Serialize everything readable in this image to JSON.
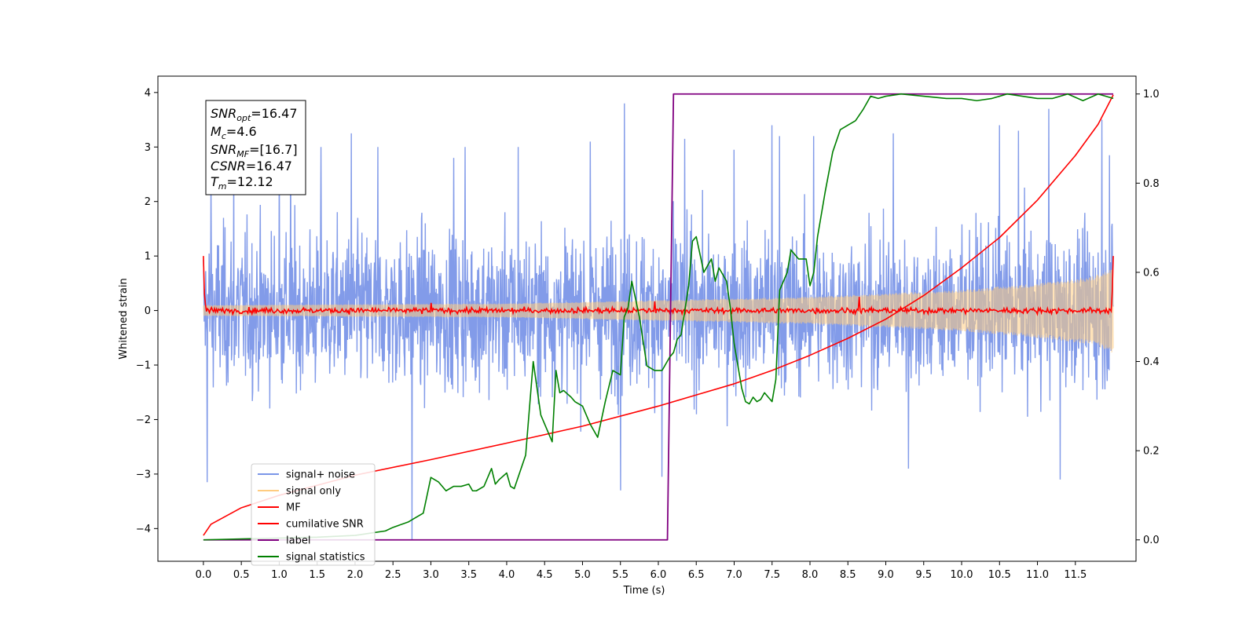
{
  "chart_data": {
    "type": "line",
    "xlabel": "Time (s)",
    "ylabel": "Whitened strain",
    "xlim": [
      -0.6,
      12.3
    ],
    "ylim": [
      -4.6,
      4.3
    ],
    "ylim_right": [
      -0.048,
      1.04
    ],
    "x_ticks": [
      "0.0",
      "0.5",
      "1.0",
      "1.5",
      "2.0",
      "2.5",
      "3.0",
      "3.5",
      "4.0",
      "4.5",
      "5.0",
      "5.5",
      "6.0",
      "6.5",
      "7.0",
      "7.5",
      "8.0",
      "8.5",
      "9.0",
      "9.5",
      "10.0",
      "10.5",
      "11.0",
      "11.5"
    ],
    "y_ticks": [
      "4",
      "3",
      "2",
      "1",
      "0",
      "−1",
      "−2",
      "−3",
      "−4"
    ],
    "y_ticks_right": [
      "1.0",
      "0.8",
      "0.6",
      "0.4",
      "0.2",
      "0.0"
    ],
    "grid": false,
    "legend_position": "lower-left",
    "annotation": {
      "snr_opt_base": "SNR",
      "snr_opt_sub": "opt",
      "snr_opt_value": "=16.47",
      "mc_base": "M",
      "mc_sub": "c",
      "mc_value": "=4.6",
      "snr_mf_base": "SNR",
      "snr_mf_sub": "MF",
      "snr_mf_value": "=[16.7]",
      "csnr_base": "CSNR",
      "csnr_value": "=16.47",
      "tm_base": "T",
      "tm_sub": "m",
      "tm_value": "=12.12"
    },
    "legend": [
      {
        "label": "signal+ noise",
        "color": "#7b96e8"
      },
      {
        "label": "signal only",
        "color": "#ffcc80"
      },
      {
        "label": "MF",
        "color": "#ff0000"
      },
      {
        "label": "cumilative SNR",
        "color": "#ff0000"
      },
      {
        "label": "label",
        "color": "#800080"
      },
      {
        "label": "signal statistics",
        "color": "#008000"
      }
    ],
    "series": [
      {
        "name": "signal+ noise",
        "axis": "left",
        "color": "#7b96e8",
        "x_range": [
          0.0,
          12.0
        ],
        "envelope_typical": [
          -1.6,
          1.6
        ],
        "spikes": [
          [
            0.05,
            -3.15
          ],
          [
            0.1,
            2.4
          ],
          [
            0.4,
            2.8
          ],
          [
            1.0,
            2.9
          ],
          [
            1.15,
            3.1
          ],
          [
            1.55,
            3.0
          ],
          [
            1.95,
            3.25
          ],
          [
            2.3,
            3.0
          ],
          [
            2.75,
            -4.2
          ],
          [
            3.3,
            2.8
          ],
          [
            3.45,
            3.0
          ],
          [
            4.15,
            3.0
          ],
          [
            5.1,
            3.1
          ],
          [
            5.5,
            -3.3
          ],
          [
            5.55,
            3.8
          ],
          [
            6.05,
            -3.05
          ],
          [
            6.35,
            3.15
          ],
          [
            7.0,
            2.95
          ],
          [
            7.5,
            3.4
          ],
          [
            7.6,
            3.2
          ],
          [
            8.05,
            3.2
          ],
          [
            9.1,
            3.25
          ],
          [
            9.3,
            -2.9
          ],
          [
            10.5,
            3.4
          ],
          [
            10.75,
            3.3
          ],
          [
            11.15,
            3.7
          ],
          [
            11.3,
            -3.1
          ],
          [
            11.85,
            3.5
          ],
          [
            11.95,
            2.85
          ]
        ]
      },
      {
        "name": "signal only",
        "axis": "left",
        "color": "#ffcc80",
        "x_range": [
          0.0,
          12.0
        ],
        "amplitude": [
          [
            0.0,
            0.1
          ],
          [
            4.0,
            0.13
          ],
          [
            8.0,
            0.25
          ],
          [
            10.0,
            0.38
          ],
          [
            11.0,
            0.5
          ],
          [
            11.7,
            0.62
          ],
          [
            12.0,
            0.78
          ]
        ]
      },
      {
        "name": "MF",
        "axis": "left",
        "color": "#ff0000",
        "x_range": [
          0.0,
          12.0
        ],
        "start_value": 1.0,
        "end_value": 1.0,
        "noise_amplitude": 0.08,
        "spikes": [
          [
            8.65,
            0.25
          ],
          [
            5.95,
            0.17
          ],
          [
            3.0,
            0.14
          ]
        ]
      },
      {
        "name": "cumilative SNR",
        "axis": "right",
        "color": "#ff0000",
        "x": [
          0.0,
          0.1,
          0.5,
          1.0,
          2.0,
          3.0,
          4.0,
          5.0,
          6.0,
          6.5,
          7.0,
          7.5,
          8.0,
          8.5,
          9.0,
          9.5,
          10.0,
          10.5,
          11.0,
          11.5,
          11.8,
          12.0
        ],
        "values": [
          0.01,
          0.035,
          0.072,
          0.1,
          0.145,
          0.18,
          0.217,
          0.255,
          0.3,
          0.325,
          0.35,
          0.38,
          0.414,
          0.452,
          0.495,
          0.548,
          0.61,
          0.678,
          0.762,
          0.862,
          0.932,
          0.998
        ]
      },
      {
        "name": "label",
        "axis": "right",
        "color": "#800080",
        "x": [
          0.0,
          6.12,
          6.2,
          12.0
        ],
        "values": [
          0.0,
          0.0,
          1.0,
          1.0
        ]
      },
      {
        "name": "signal statistics",
        "axis": "right",
        "color": "#008000",
        "x": [
          0.0,
          0.5,
          1.0,
          1.5,
          2.0,
          2.2,
          2.4,
          2.5,
          2.7,
          2.8,
          2.9,
          3.0,
          3.1,
          3.2,
          3.3,
          3.4,
          3.5,
          3.55,
          3.6,
          3.7,
          3.8,
          3.85,
          3.9,
          4.0,
          4.05,
          4.1,
          4.25,
          4.35,
          4.45,
          4.55,
          4.6,
          4.65,
          4.7,
          4.75,
          4.85,
          4.9,
          5.0,
          5.1,
          5.2,
          5.3,
          5.4,
          5.5,
          5.55,
          5.6,
          5.65,
          5.75,
          5.85,
          5.95,
          6.05,
          6.15,
          6.2,
          6.25,
          6.3,
          6.4,
          6.45,
          6.5,
          6.6,
          6.7,
          6.75,
          6.8,
          6.9,
          6.95,
          7.0,
          7.1,
          7.15,
          7.2,
          7.25,
          7.3,
          7.35,
          7.4,
          7.45,
          7.5,
          7.55,
          7.6,
          7.7,
          7.75,
          7.85,
          7.95,
          8.0,
          8.05,
          8.1,
          8.2,
          8.3,
          8.4,
          8.5,
          8.6,
          8.7,
          8.8,
          8.9,
          9.0,
          9.2,
          9.5,
          9.8,
          10.0,
          10.2,
          10.4,
          10.6,
          10.8,
          11.0,
          11.2,
          11.4,
          11.6,
          11.8,
          12.0
        ],
        "values": [
          0.0,
          0.002,
          0.004,
          0.006,
          0.01,
          0.015,
          0.02,
          0.028,
          0.04,
          0.05,
          0.06,
          0.14,
          0.13,
          0.11,
          0.12,
          0.12,
          0.125,
          0.11,
          0.11,
          0.12,
          0.16,
          0.125,
          0.135,
          0.15,
          0.12,
          0.115,
          0.19,
          0.4,
          0.28,
          0.24,
          0.22,
          0.38,
          0.33,
          0.335,
          0.32,
          0.31,
          0.3,
          0.26,
          0.23,
          0.31,
          0.38,
          0.37,
          0.5,
          0.52,
          0.58,
          0.5,
          0.39,
          0.38,
          0.38,
          0.41,
          0.42,
          0.45,
          0.46,
          0.57,
          0.67,
          0.68,
          0.6,
          0.63,
          0.58,
          0.61,
          0.58,
          0.52,
          0.44,
          0.34,
          0.31,
          0.305,
          0.32,
          0.31,
          0.315,
          0.33,
          0.32,
          0.31,
          0.36,
          0.56,
          0.6,
          0.65,
          0.63,
          0.63,
          0.57,
          0.6,
          0.68,
          0.78,
          0.87,
          0.92,
          0.93,
          0.94,
          0.965,
          0.995,
          0.99,
          0.995,
          1.0,
          0.995,
          0.99,
          0.99,
          0.985,
          0.99,
          1.0,
          0.995,
          0.99,
          0.99,
          1.0,
          0.985,
          1.0,
          0.99
        ]
      }
    ]
  }
}
